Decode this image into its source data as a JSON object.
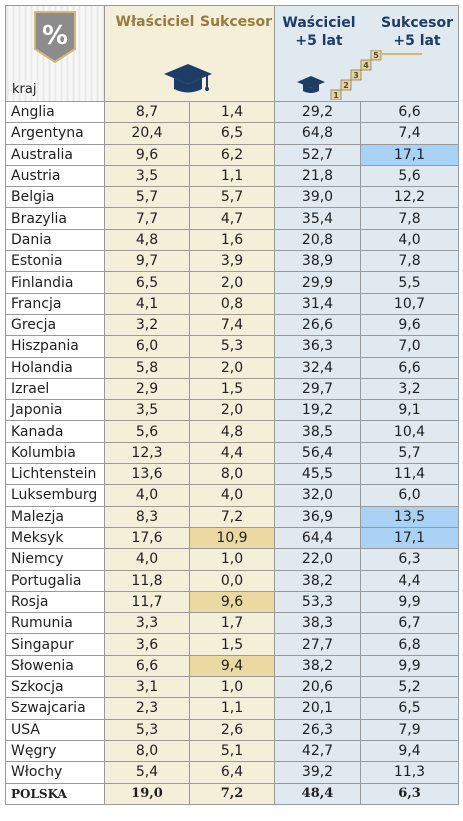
{
  "header": {
    "country_col": "kraj",
    "owner": "Właściciel",
    "successor": "Sukcesor",
    "owner_plus5": [
      "Waściciel",
      "+5 lat"
    ],
    "successor_plus5": [
      "Sukcesor",
      "+5 lat"
    ],
    "percent_symbol": "%",
    "stair_steps": [
      "1",
      "2",
      "3",
      "4",
      "5"
    ]
  },
  "colors": {
    "gold_column": "#f3efd9",
    "blue_column": "#dfe9ef",
    "highlight_gold": "#ecd9a2",
    "highlight_blue": "#a9d2f4",
    "header_gold_text": "#9a7a3f",
    "header_blue_text": "#1d3c66"
  },
  "rows": [
    {
      "country": "Anglia",
      "owner": "8,7",
      "successor": "1,4",
      "owner5": "29,2",
      "successor5": "6,6"
    },
    {
      "country": "Argentyna",
      "owner": "20,4",
      "successor": "6,5",
      "owner5": "64,8",
      "successor5": "7,4"
    },
    {
      "country": "Australia",
      "owner": "9,6",
      "successor": "6,2",
      "owner5": "52,7",
      "successor5": "17,1",
      "hl_successor5": "blue"
    },
    {
      "country": "Austria",
      "owner": "3,5",
      "successor": "1,1",
      "owner5": "21,8",
      "successor5": "5,6"
    },
    {
      "country": "Belgia",
      "owner": "5,7",
      "successor": "5,7",
      "owner5": "39,0",
      "successor5": "12,2"
    },
    {
      "country": "Brazylia",
      "owner": "7,7",
      "successor": "4,7",
      "owner5": "35,4",
      "successor5": "7,8"
    },
    {
      "country": "Dania",
      "owner": "4,8",
      "successor": "1,6",
      "owner5": "20,8",
      "successor5": "4,0"
    },
    {
      "country": "Estonia",
      "owner": "9,7",
      "successor": "3,9",
      "owner5": "38,9",
      "successor5": "7,8"
    },
    {
      "country": "Finlandia",
      "owner": "6,5",
      "successor": "2,0",
      "owner5": "29,9",
      "successor5": "5,5"
    },
    {
      "country": "Francja",
      "owner": "4,1",
      "successor": "0,8",
      "owner5": "31,4",
      "successor5": "10,7"
    },
    {
      "country": "Grecja",
      "owner": "3,2",
      "successor": "7,4",
      "owner5": "26,6",
      "successor5": "9,6"
    },
    {
      "country": "Hiszpania",
      "owner": "6,0",
      "successor": "5,3",
      "owner5": "36,3",
      "successor5": "7,0"
    },
    {
      "country": "Holandia",
      "owner": "5,8",
      "successor": "2,0",
      "owner5": "32,4",
      "successor5": "6,6"
    },
    {
      "country": "Izrael",
      "owner": "2,9",
      "successor": "1,5",
      "owner5": "29,7",
      "successor5": "3,2"
    },
    {
      "country": "Japonia",
      "owner": "3,5",
      "successor": "2,0",
      "owner5": "19,2",
      "successor5": "9,1"
    },
    {
      "country": "Kanada",
      "owner": "5,6",
      "successor": "4,8",
      "owner5": "38,5",
      "successor5": "10,4"
    },
    {
      "country": "Kolumbia",
      "owner": "12,3",
      "successor": "4,4",
      "owner5": "56,4",
      "successor5": "5,7"
    },
    {
      "country": "Lichtenstein",
      "owner": "13,6",
      "successor": "8,0",
      "owner5": "45,5",
      "successor5": "11,4"
    },
    {
      "country": "Luksemburg",
      "owner": "4,0",
      "successor": "4,0",
      "owner5": "32,0",
      "successor5": "6,0"
    },
    {
      "country": "Malezja",
      "owner": "8,3",
      "successor": "7,2",
      "owner5": "36,9",
      "successor5": "13,5",
      "hl_successor5": "blue"
    },
    {
      "country": "Meksyk",
      "owner": "17,6",
      "successor": "10,9",
      "owner5": "64,4",
      "successor5": "17,1",
      "hl_successor": "gold",
      "hl_successor5": "blue"
    },
    {
      "country": "Niemcy",
      "owner": "4,0",
      "successor": "1,0",
      "owner5": "22,0",
      "successor5": "6,3"
    },
    {
      "country": "Portugalia",
      "owner": "11,8",
      "successor": "0,0",
      "owner5": "38,2",
      "successor5": "4,4"
    },
    {
      "country": "Rosja",
      "owner": "11,7",
      "successor": "9,6",
      "owner5": "53,3",
      "successor5": "9,9",
      "hl_successor": "gold"
    },
    {
      "country": "Rumunia",
      "owner": "3,3",
      "successor": "1,7",
      "owner5": "38,3",
      "successor5": "6,7"
    },
    {
      "country": "Singapur",
      "owner": "3,6",
      "successor": "1,5",
      "owner5": "27,7",
      "successor5": "6,8"
    },
    {
      "country": "Słowenia",
      "owner": "6,6",
      "successor": "9,4",
      "owner5": "38,2",
      "successor5": "9,9",
      "hl_successor": "gold"
    },
    {
      "country": "Szkocja",
      "owner": "3,1",
      "successor": "1,0",
      "owner5": "20,6",
      "successor5": "5,2"
    },
    {
      "country": "Szwajcaria",
      "owner": "2,3",
      "successor": "1,1",
      "owner5": "20,1",
      "successor5": "6,5"
    },
    {
      "country": "USA",
      "owner": "5,3",
      "successor": "2,6",
      "owner5": "26,3",
      "successor5": "7,9"
    },
    {
      "country": "Węgry",
      "owner": "8,0",
      "successor": "5,1",
      "owner5": "42,7",
      "successor5": "9,4"
    },
    {
      "country": "Włochy",
      "owner": "5,4",
      "successor": "6,4",
      "owner5": "39,2",
      "successor5": "11,3"
    }
  ],
  "total": {
    "country": "POLSKA",
    "owner": "19,0",
    "successor": "7,2",
    "owner5": "48,4",
    "successor5": "6,3"
  }
}
